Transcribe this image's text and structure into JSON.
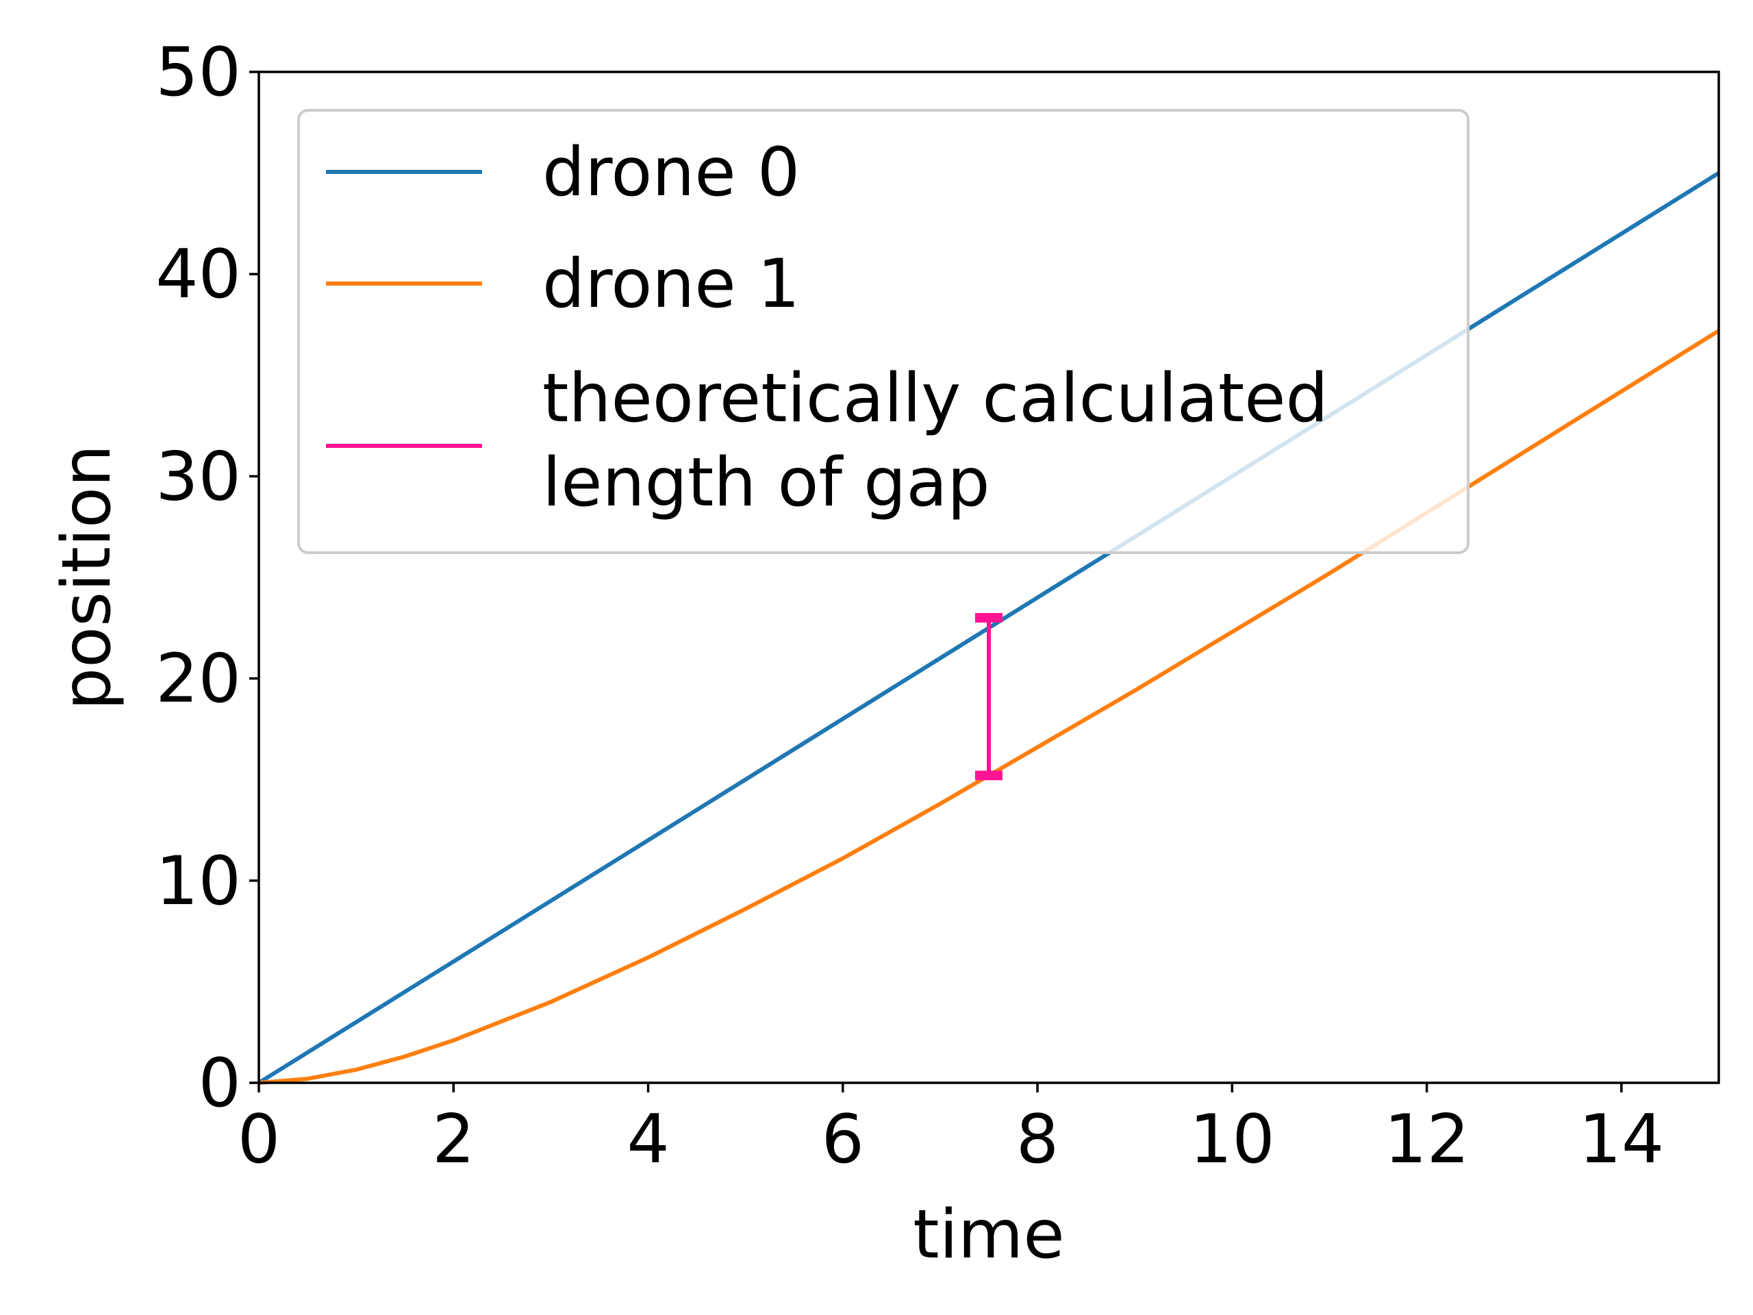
{
  "chart_data": {
    "type": "line",
    "xlabel": "time",
    "ylabel": "position",
    "xlim": [
      0,
      15
    ],
    "ylim": [
      0,
      50
    ],
    "xticks": [
      "0",
      "2",
      "4",
      "6",
      "8",
      "10",
      "12",
      "14"
    ],
    "yticks": [
      "0",
      "10",
      "20",
      "30",
      "40",
      "50"
    ],
    "grid": false,
    "legend": {
      "placement": "upper-left",
      "entries": [
        {
          "label": "drone 0",
          "color": "#1f77b4"
        },
        {
          "label": "drone 1",
          "color": "#ff7f0e"
        },
        {
          "label_line1": "theoretically calculated",
          "label_line2": "length of gap",
          "color": "#ff1493"
        }
      ]
    },
    "series": [
      {
        "name": "drone 0",
        "color": "#1f77b4",
        "x": [
          0,
          1,
          2,
          3,
          4,
          5,
          6,
          7,
          8,
          9,
          10,
          11,
          12,
          13,
          14,
          15
        ],
        "y": [
          0,
          3.0,
          6.0,
          9.0,
          12.0,
          15.0,
          18.0,
          21.0,
          24.0,
          27.0,
          30.0,
          33.0,
          36.0,
          39.0,
          42.0,
          45.0
        ]
      },
      {
        "name": "drone 1",
        "color": "#ff7f0e",
        "x": [
          0,
          0.5,
          1,
          1.5,
          2,
          3,
          4,
          5,
          6,
          7,
          7.5,
          8,
          9,
          10,
          11,
          12,
          13,
          14,
          15
        ],
        "y": [
          0,
          0.2,
          0.65,
          1.3,
          2.1,
          4.0,
          6.2,
          8.6,
          11.1,
          13.8,
          15.2,
          16.6,
          19.4,
          22.3,
          25.2,
          28.2,
          31.2,
          34.2,
          37.2
        ]
      }
    ],
    "gap_marker": {
      "color": "#ff1493",
      "x": 7.5,
      "y_low": 15.2,
      "y_high": 23.0
    }
  }
}
